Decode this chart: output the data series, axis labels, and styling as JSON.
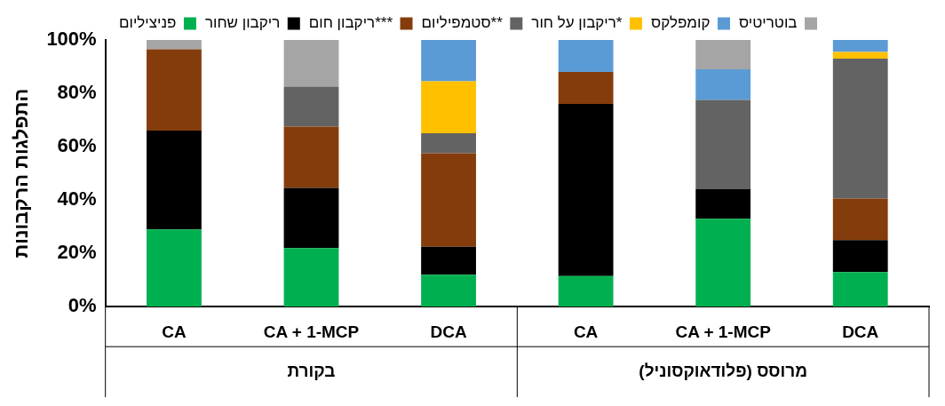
{
  "chart_data": {
    "type": "bar",
    "stacked": true,
    "ylabel": "התפלגות הרקבונות",
    "categories": [
      "CA",
      "CA + 1-MCP",
      "DCA",
      "CA",
      "CA + 1-MCP",
      "DCA"
    ],
    "series": [
      {
        "name": "פניציליום",
        "color": "#00b050",
        "values": [
          29,
          22,
          12,
          11.5,
          33,
          13
        ]
      },
      {
        "name": "ריקבון שחור",
        "color": "#000000",
        "values": [
          37,
          22.5,
          10.5,
          64.5,
          11,
          12
        ]
      },
      {
        "name": "ריקבון חום***",
        "color": "#843c0c",
        "values": [
          30.5,
          23,
          35,
          12,
          0,
          15.5
        ]
      },
      {
        "name": "סטמפיליום**",
        "color": "#636363",
        "values": [
          0,
          15,
          7.5,
          0,
          33.5,
          52.5
        ]
      },
      {
        "name": "ריקבון על חור*",
        "color": "#ffc000",
        "values": [
          0,
          0,
          19.5,
          0,
          0,
          2.5
        ]
      },
      {
        "name": "קומפלקס",
        "color": "#5b9bd5",
        "values": [
          0,
          0,
          15.5,
          12,
          11.5,
          4.5
        ]
      },
      {
        "name": "בוטריטיס",
        "color": "#a5a5a5",
        "values": [
          3.5,
          17.5,
          0,
          0,
          11,
          0
        ]
      }
    ],
    "ylim": [
      0,
      100
    ],
    "yticks": [
      {
        "value": 0,
        "label": "0%"
      },
      {
        "value": 20,
        "label": "20%"
      },
      {
        "value": 40,
        "label": "40%"
      },
      {
        "value": 60,
        "label": "60%"
      },
      {
        "value": 80,
        "label": "80%"
      },
      {
        "value": 100,
        "label": "100%"
      }
    ],
    "legend": "top",
    "grid": false,
    "annotations": [
      "בקורת",
      "מרוסס (פלודאוקסוניל)"
    ]
  }
}
